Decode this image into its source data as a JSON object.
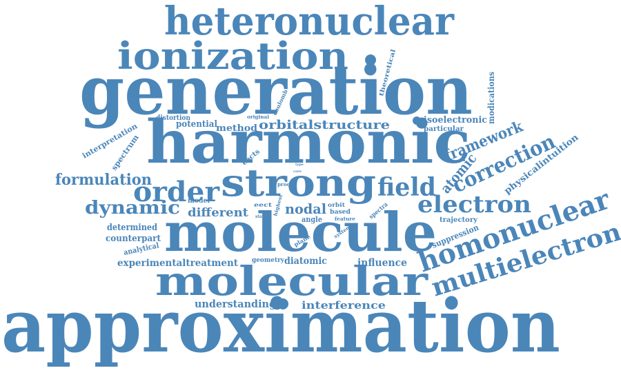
{
  "color": "#4b86b9",
  "words": [
    {
      "id": "approximation",
      "text": "approximation"
    },
    {
      "id": "generation",
      "text": "generation"
    },
    {
      "id": "harmonic",
      "text": "harmonic"
    },
    {
      "id": "molecule",
      "text": "molecule"
    },
    {
      "id": "heteronuclear",
      "text": "heteronuclear"
    },
    {
      "id": "ionization",
      "text": "ionization"
    },
    {
      "id": "molecular",
      "text": "molecular"
    },
    {
      "id": "strong",
      "text": "strong"
    },
    {
      "id": "order",
      "text": "order"
    },
    {
      "id": "field",
      "text": "field"
    },
    {
      "id": "electron",
      "text": "electron"
    },
    {
      "id": "homonuclear",
      "text": "homonuclear"
    },
    {
      "id": "multielectron",
      "text": "multielectron"
    },
    {
      "id": "correction",
      "text": "correction"
    },
    {
      "id": "framework",
      "text": "framework"
    },
    {
      "id": "atomic",
      "text": "atomic"
    },
    {
      "id": "dynamic",
      "text": "dynamic"
    },
    {
      "id": "formulation",
      "text": "formulation"
    },
    {
      "id": "orbitalstructure",
      "text": "orbitalstructure"
    },
    {
      "id": "nodal",
      "text": "nodal"
    },
    {
      "id": "different",
      "text": "different"
    },
    {
      "id": "physicalintuition",
      "text": "physicalintuition"
    },
    {
      "id": "interference",
      "text": "interference"
    },
    {
      "id": "understanding",
      "text": "understanding"
    },
    {
      "id": "experimentaltreatment",
      "text": "experimentaltreatment"
    },
    {
      "id": "diatomic",
      "text": "diatomic"
    },
    {
      "id": "influence",
      "text": "influence"
    },
    {
      "id": "geometry",
      "text": "geometry"
    },
    {
      "id": "determined",
      "text": "determined"
    },
    {
      "id": "counterpart",
      "text": "counterpart"
    },
    {
      "id": "analytical",
      "text": "analytical"
    },
    {
      "id": "suppression",
      "text": "suppression"
    },
    {
      "id": "trajectory",
      "text": "trajectory"
    },
    {
      "id": "isoelectronic",
      "text": "isoelectronic"
    },
    {
      "id": "particular",
      "text": "particular"
    },
    {
      "id": "modifications",
      "text": "modications"
    },
    {
      "id": "potential",
      "text": "potential"
    },
    {
      "id": "method",
      "text": "method"
    },
    {
      "id": "distortion",
      "text": "distortion"
    },
    {
      "id": "interpretation",
      "text": "interpretation"
    },
    {
      "id": "spectrum",
      "text": "spectrum"
    },
    {
      "id": "theoretical",
      "text": "theoretical"
    },
    {
      "id": "coulomb",
      "text": "coulomb"
    },
    {
      "id": "original",
      "text": "original"
    },
    {
      "id": "effects",
      "text": "eects"
    },
    {
      "id": "model",
      "text": "model"
    },
    {
      "id": "effect",
      "text": "eect"
    },
    {
      "id": "static",
      "text": "static"
    },
    {
      "id": "highest",
      "text": "highest"
    },
    {
      "id": "proc",
      "text": "proc"
    },
    {
      "id": "type",
      "text": "type"
    },
    {
      "id": "core",
      "text": "core"
    },
    {
      "id": "orbit",
      "text": "orbit"
    },
    {
      "id": "based",
      "text": "based"
    },
    {
      "id": "feature",
      "text": "feature"
    },
    {
      "id": "angle",
      "text": "angle"
    },
    {
      "id": "system",
      "text": "system"
    },
    {
      "id": "spectra",
      "text": "spectra"
    },
    {
      "id": "plane",
      "text": "plane"
    }
  ]
}
